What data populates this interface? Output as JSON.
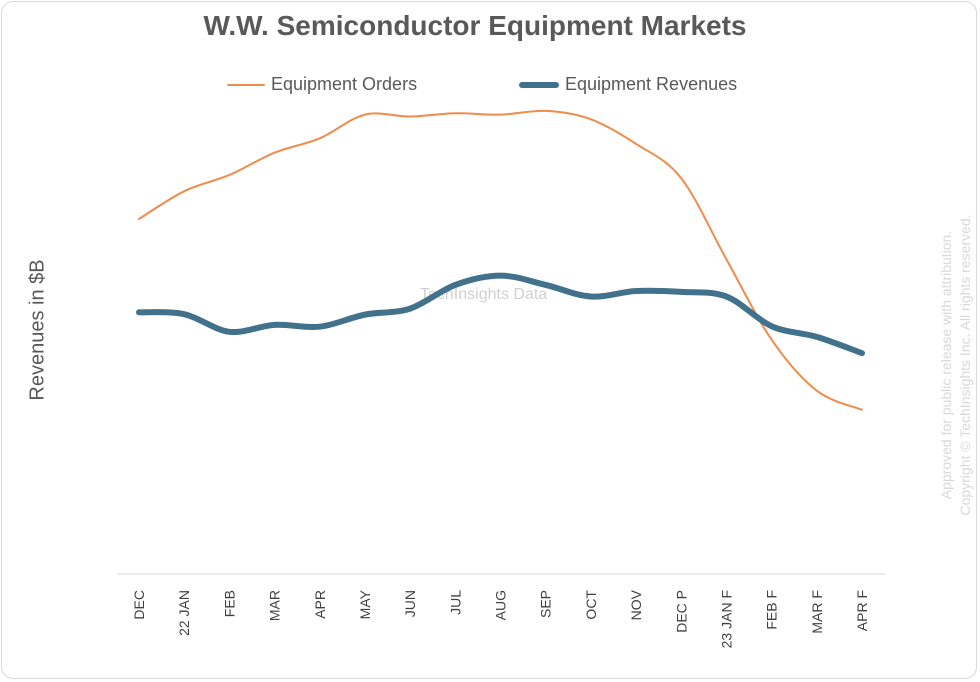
{
  "chart_data": {
    "type": "line",
    "title": "W.W. Semiconductor Equipment Markets",
    "xlabel": "",
    "ylabel": "Revenues in $B",
    "ylim": [
      0,
      100
    ],
    "grid": false,
    "legend": "top-center",
    "categories": [
      "DEC",
      "22 JAN",
      "FEB",
      "MAR",
      "APR",
      "MAY",
      "JUN",
      "JUL",
      "AUG",
      "SEP",
      "OCT",
      "NOV",
      "DEC P",
      "23 JAN F",
      "FEB F",
      "MAR F",
      "APR F"
    ],
    "series": [
      {
        "name": "Equipment Orders",
        "color": "#f08c4b",
        "line_weight": "thin",
        "values": [
          76.5,
          82.5,
          86.0,
          90.8,
          93.9,
          99.0,
          98.6,
          99.3,
          99.0,
          99.8,
          98.0,
          92.7,
          85.3,
          67.8,
          50.5,
          39.5,
          35.4
        ]
      },
      {
        "name": "Equipment Revenues",
        "color": "#41718b",
        "line_weight": "thick",
        "values": [
          56.4,
          56.0,
          52.2,
          53.7,
          53.3,
          55.9,
          57.2,
          62.3,
          64.3,
          62.3,
          59.8,
          61.0,
          60.8,
          59.8,
          53.4,
          51.1,
          47.6
        ]
      }
    ],
    "annotations": [
      "TechInsights Data"
    ],
    "footnote": [
      "Approved for public release with attribution.",
      "Copyright © TechInsights Inc.  All rights reserved."
    ]
  }
}
